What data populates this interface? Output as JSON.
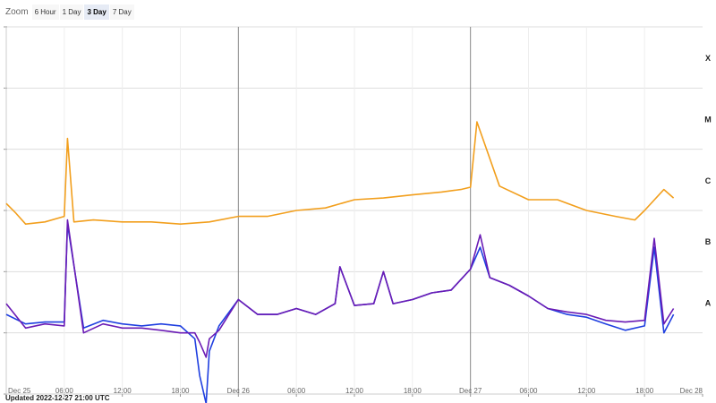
{
  "toolbar": {
    "zoom_label": "Zoom",
    "buttons": [
      "6 Hour",
      "1 Day",
      "3 Day",
      "7 Day"
    ],
    "active": "3 Day"
  },
  "footer": {
    "updated": "Updated 2022-12-27 21:00 UTC"
  },
  "colors": {
    "A": "#1f3fe0",
    "B": "#6a1bb5",
    "C": "#f29f1d",
    "grid": "#dddddd",
    "day": "#888888"
  },
  "chart_data": {
    "type": "line",
    "title": "",
    "xlabel": "",
    "ylabel": "",
    "y_scale": "log",
    "ylim": [
      1e-09,
      0.001
    ],
    "grid": true,
    "x_range": [
      "2022-12-25 00:00",
      "2022-12-28 00:00"
    ],
    "x_ticks": [
      "Dec 25",
      "06:00",
      "12:00",
      "18:00",
      "Dec 26",
      "06:00",
      "12:00",
      "18:00",
      "Dec 27",
      "06:00",
      "12:00",
      "18:00",
      "Dec 28"
    ],
    "class_labels": [
      "X",
      "M",
      "C",
      "B",
      "A"
    ],
    "series": [
      {
        "key": "A",
        "x": [
          "2022-12-25 00:00",
          "2022-12-25 02:00",
          "2022-12-25 04:00",
          "2022-12-25 06:00",
          "2022-12-25 06:20",
          "2022-12-25 08:00",
          "2022-12-25 10:00",
          "2022-12-25 12:00",
          "2022-12-25 14:00",
          "2022-12-25 16:00",
          "2022-12-25 18:00",
          "2022-12-25 19:30",
          "2022-12-25 20:00",
          "2022-12-25 20:40",
          "2022-12-25 21:00",
          "2022-12-25 22:00",
          "2022-12-26 00:00",
          "2022-12-26 02:00",
          "2022-12-26 04:00",
          "2022-12-26 06:00",
          "2022-12-26 08:00",
          "2022-12-26 10:00",
          "2022-12-26 10:30",
          "2022-12-26 12:00",
          "2022-12-26 14:00",
          "2022-12-26 15:00",
          "2022-12-26 16:00",
          "2022-12-26 18:00",
          "2022-12-26 20:00",
          "2022-12-26 22:00",
          "2022-12-27 00:00",
          "2022-12-27 01:00",
          "2022-12-27 02:00",
          "2022-12-27 04:00",
          "2022-12-27 06:00",
          "2022-12-27 08:00",
          "2022-12-27 10:00",
          "2022-12-27 12:00",
          "2022-12-27 14:00",
          "2022-12-27 16:00",
          "2022-12-27 18:00",
          "2022-12-27 19:00",
          "2022-12-27 20:00",
          "2022-12-27 21:00"
        ],
        "y": [
          2e-08,
          1.4e-08,
          1.5e-08,
          1.5e-08,
          6e-07,
          1.2e-08,
          1.6e-08,
          1.4e-08,
          1.3e-08,
          1.4e-08,
          1.3e-08,
          8e-09,
          2e-09,
          7e-10,
          5e-09,
          1.3e-08,
          3.5e-08,
          2e-08,
          2e-08,
          2.5e-08,
          2e-08,
          3e-08,
          1.2e-07,
          2.8e-08,
          3e-08,
          1e-07,
          3e-08,
          3.5e-08,
          4.5e-08,
          5e-08,
          1.1e-07,
          2.5e-07,
          8e-08,
          6e-08,
          4e-08,
          2.5e-08,
          2e-08,
          1.8e-08,
          1.4e-08,
          1.1e-08,
          1.3e-08,
          2.5e-07,
          1e-08,
          2e-08
        ]
      },
      {
        "key": "B",
        "x": [
          "2022-12-25 00:00",
          "2022-12-25 02:00",
          "2022-12-25 04:00",
          "2022-12-25 06:00",
          "2022-12-25 06:20",
          "2022-12-25 08:00",
          "2022-12-25 10:00",
          "2022-12-25 12:00",
          "2022-12-25 14:00",
          "2022-12-25 16:00",
          "2022-12-25 18:00",
          "2022-12-25 19:30",
          "2022-12-25 20:00",
          "2022-12-25 20:40",
          "2022-12-25 21:00",
          "2022-12-25 22:00",
          "2022-12-26 00:00",
          "2022-12-26 02:00",
          "2022-12-26 04:00",
          "2022-12-26 06:00",
          "2022-12-26 08:00",
          "2022-12-26 10:00",
          "2022-12-26 10:30",
          "2022-12-26 12:00",
          "2022-12-26 14:00",
          "2022-12-26 15:00",
          "2022-12-26 16:00",
          "2022-12-26 18:00",
          "2022-12-26 20:00",
          "2022-12-26 22:00",
          "2022-12-27 00:00",
          "2022-12-27 01:00",
          "2022-12-27 02:00",
          "2022-12-27 04:00",
          "2022-12-27 06:00",
          "2022-12-27 08:00",
          "2022-12-27 10:00",
          "2022-12-27 12:00",
          "2022-12-27 14:00",
          "2022-12-27 16:00",
          "2022-12-27 18:00",
          "2022-12-27 19:00",
          "2022-12-27 20:00",
          "2022-12-27 21:00"
        ],
        "y": [
          3e-08,
          1.2e-08,
          1.4e-08,
          1.3e-08,
          7e-07,
          1e-08,
          1.4e-08,
          1.2e-08,
          1.2e-08,
          1.1e-08,
          1e-08,
          1e-08,
          7e-09,
          4e-09,
          8e-09,
          1.1e-08,
          3.5e-08,
          2e-08,
          2e-08,
          2.5e-08,
          2e-08,
          3e-08,
          1.2e-07,
          2.8e-08,
          3e-08,
          1e-07,
          3e-08,
          3.5e-08,
          4.5e-08,
          5e-08,
          1.1e-07,
          4e-07,
          8e-08,
          6e-08,
          4e-08,
          2.5e-08,
          2.2e-08,
          2e-08,
          1.6e-08,
          1.5e-08,
          1.6e-08,
          3.5e-07,
          1.4e-08,
          2.5e-08
        ]
      },
      {
        "key": "C",
        "x": [
          "2022-12-25 00:00",
          "2022-12-25 01:00",
          "2022-12-25 02:00",
          "2022-12-25 04:00",
          "2022-12-25 06:00",
          "2022-12-25 06:20",
          "2022-12-25 07:00",
          "2022-12-25 09:00",
          "2022-12-25 12:00",
          "2022-12-25 15:00",
          "2022-12-25 18:00",
          "2022-12-25 21:00",
          "2022-12-26 00:00",
          "2022-12-26 03:00",
          "2022-12-26 06:00",
          "2022-12-26 09:00",
          "2022-12-26 12:00",
          "2022-12-26 15:00",
          "2022-12-26 18:00",
          "2022-12-26 21:00",
          "2022-12-26 23:00",
          "2022-12-27 00:00",
          "2022-12-27 00:40",
          "2022-12-27 03:00",
          "2022-12-27 06:00",
          "2022-12-27 09:00",
          "2022-12-27 12:00",
          "2022-12-27 15:00",
          "2022-12-27 17:00",
          "2022-12-27 18:00",
          "2022-12-27 20:00",
          "2022-12-27 21:00"
        ],
        "y": [
          1.3e-06,
          9e-07,
          6e-07,
          6.5e-07,
          8e-07,
          1.5e-05,
          6.5e-07,
          7e-07,
          6.5e-07,
          6.5e-07,
          6e-07,
          6.5e-07,
          8e-07,
          8e-07,
          1e-06,
          1.1e-06,
          1.5e-06,
          1.6e-06,
          1.8e-06,
          2e-06,
          2.2e-06,
          2.4e-06,
          2.8e-05,
          2.5e-06,
          1.5e-06,
          1.5e-06,
          1e-06,
          8e-07,
          7e-07,
          1e-06,
          2.2e-06,
          1.6e-06
        ]
      }
    ]
  }
}
